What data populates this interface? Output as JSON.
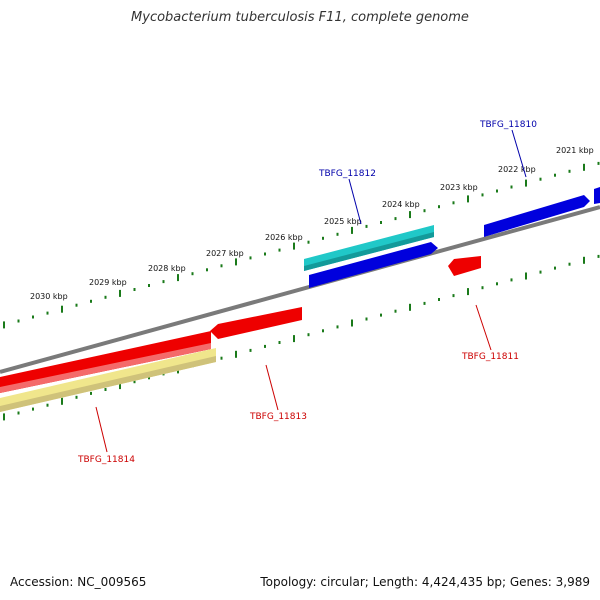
{
  "title": "Mycobacterium tuberculosis F11, complete genome",
  "footer": {
    "accession": "Accession: NC_009565",
    "summary": "Topology: circular; Length: 4,424,435 bp; Genes: 3,989"
  },
  "kbp_ticks": [
    "2021 kbp",
    "2022 kbp",
    "2023 kbp",
    "2024 kbp",
    "2025 kbp",
    "2026 kbp",
    "2027 kbp",
    "2028 kbp",
    "2029 kbp",
    "2030 kbp"
  ],
  "genes": [
    {
      "id": "TBFG_11810",
      "strand": "plus",
      "color": "#0000cc"
    },
    {
      "id": "TBFG_11811",
      "strand": "minus",
      "color": "#cc0000"
    },
    {
      "id": "TBFG_11812",
      "strand": "plus",
      "color": "#00aacc"
    },
    {
      "id": "TBFG_11813",
      "strand": "minus",
      "color": "#cc0000"
    },
    {
      "id": "TBFG_11814",
      "strand": "minus",
      "color": "#cc0000"
    }
  ],
  "colors": {
    "backbone": "#7a7a7a",
    "tick": "#1a7a1a",
    "forward_gene": "#0000dd",
    "forward_gene_alt": "#20c8c8",
    "reverse_gene": "#ee0000",
    "pseudo_gene": "#f0e68c",
    "forward_label": "#0000aa",
    "reverse_label": "#cc0000"
  }
}
